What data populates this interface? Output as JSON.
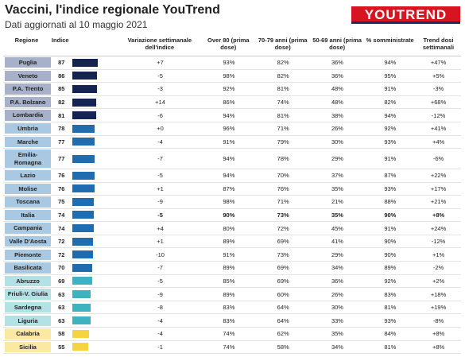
{
  "header": {
    "title": "Vaccini, l'indice regionale YouTrend",
    "subtitle": "Dati aggiornati al 10 maggio 2021",
    "logo": "YOUTREND"
  },
  "table": {
    "columns": [
      "Regione",
      "Indice",
      "Variazione settimanale dell'indice",
      "Over 80 (prima dose)",
      "70-79 anni (prima dose)",
      "50-69 anni (prima dose)",
      "% somministrate",
      "Trend dosi settimanali"
    ],
    "rows": [
      {
        "cells": [
          "Puglia",
          87,
          "+7",
          "93%",
          "82%",
          "36%",
          "94%",
          "+47%"
        ],
        "label_color": "#a7b1c9",
        "bar_color": "#14234f"
      },
      {
        "cells": [
          "Veneto",
          86,
          "-5",
          "98%",
          "82%",
          "36%",
          "95%",
          "+5%"
        ],
        "label_color": "#a7b1c9",
        "bar_color": "#14234f"
      },
      {
        "cells": [
          "P.A. Trento",
          85,
          "-3",
          "92%",
          "81%",
          "48%",
          "91%",
          "-3%"
        ],
        "label_color": "#a7b1c9",
        "bar_color": "#14234f"
      },
      {
        "cells": [
          "P.A. Bolzano",
          82,
          "+14",
          "86%",
          "74%",
          "48%",
          "82%",
          "+68%"
        ],
        "label_color": "#a7b1c9",
        "bar_color": "#14234f"
      },
      {
        "cells": [
          "Lombardia",
          81,
          "-6",
          "94%",
          "81%",
          "38%",
          "94%",
          "-12%"
        ],
        "label_color": "#a7b1c9",
        "bar_color": "#14234f"
      },
      {
        "cells": [
          "Umbria",
          78,
          "+0",
          "96%",
          "71%",
          "26%",
          "92%",
          "+41%"
        ],
        "label_color": "#a9c8e2",
        "bar_color": "#1f6cb0"
      },
      {
        "cells": [
          "Marche",
          77,
          "-4",
          "91%",
          "79%",
          "30%",
          "93%",
          "+4%"
        ],
        "label_color": "#a9c8e2",
        "bar_color": "#1f6cb0"
      },
      {
        "cells": [
          "Emilia-Romagna",
          77,
          "-7",
          "94%",
          "78%",
          "29%",
          "91%",
          "-6%"
        ],
        "label_color": "#a9c8e2",
        "bar_color": "#1f6cb0"
      },
      {
        "cells": [
          "Lazio",
          76,
          "-5",
          "94%",
          "70%",
          "37%",
          "87%",
          "+22%"
        ],
        "label_color": "#a9c8e2",
        "bar_color": "#1f6cb0"
      },
      {
        "cells": [
          "Molise",
          76,
          "+1",
          "87%",
          "76%",
          "35%",
          "93%",
          "+17%"
        ],
        "label_color": "#a9c8e2",
        "bar_color": "#1f6cb0"
      },
      {
        "cells": [
          "Toscana",
          75,
          "-9",
          "98%",
          "71%",
          "21%",
          "88%",
          "+21%"
        ],
        "label_color": "#a9c8e2",
        "bar_color": "#1f6cb0"
      },
      {
        "cells": [
          "Italia",
          74,
          "-5",
          "90%",
          "73%",
          "35%",
          "90%",
          "+8%"
        ],
        "label_color": "#a9c8e2",
        "bar_color": "#1f6cb0",
        "bold": true
      },
      {
        "cells": [
          "Campania",
          74,
          "+4",
          "80%",
          "72%",
          "45%",
          "91%",
          "+24%"
        ],
        "label_color": "#a9c8e2",
        "bar_color": "#1f6cb0"
      },
      {
        "cells": [
          "Valle D'Aosta",
          72,
          "+1",
          "89%",
          "69%",
          "41%",
          "90%",
          "-12%"
        ],
        "label_color": "#a9c8e2",
        "bar_color": "#1f6cb0"
      },
      {
        "cells": [
          "Piemonte",
          72,
          "-10",
          "91%",
          "73%",
          "29%",
          "90%",
          "+1%"
        ],
        "label_color": "#a9c8e2",
        "bar_color": "#1f6cb0"
      },
      {
        "cells": [
          "Basilicata",
          70,
          "-7",
          "89%",
          "69%",
          "34%",
          "89%",
          "-2%"
        ],
        "label_color": "#a9c8e2",
        "bar_color": "#1f6cb0"
      },
      {
        "cells": [
          "Abruzzo",
          69,
          "-5",
          "85%",
          "69%",
          "36%",
          "92%",
          "+2%"
        ],
        "label_color": "#b2e2e6",
        "bar_color": "#3db3c2"
      },
      {
        "cells": [
          "Friuli-V. Giulia",
          63,
          "-9",
          "89%",
          "60%",
          "26%",
          "83%",
          "+18%"
        ],
        "label_color": "#b2e2e6",
        "bar_color": "#3db3c2"
      },
      {
        "cells": [
          "Sardegna",
          63,
          "-8",
          "83%",
          "64%",
          "30%",
          "81%",
          "+19%"
        ],
        "label_color": "#b2e2e6",
        "bar_color": "#3db3c2"
      },
      {
        "cells": [
          "Liguria",
          63,
          "-4",
          "83%",
          "64%",
          "33%",
          "93%",
          "-8%"
        ],
        "label_color": "#b2e2e6",
        "bar_color": "#3db3c2"
      },
      {
        "cells": [
          "Calabria",
          58,
          "-4",
          "74%",
          "62%",
          "35%",
          "84%",
          "+8%"
        ],
        "label_color": "#fbe8a3",
        "bar_color": "#f6d340"
      },
      {
        "cells": [
          "Sicilia",
          55,
          "-1",
          "74%",
          "58%",
          "34%",
          "81%",
          "+8%"
        ],
        "label_color": "#fbe8a3",
        "bar_color": "#f6d340"
      }
    ]
  }
}
